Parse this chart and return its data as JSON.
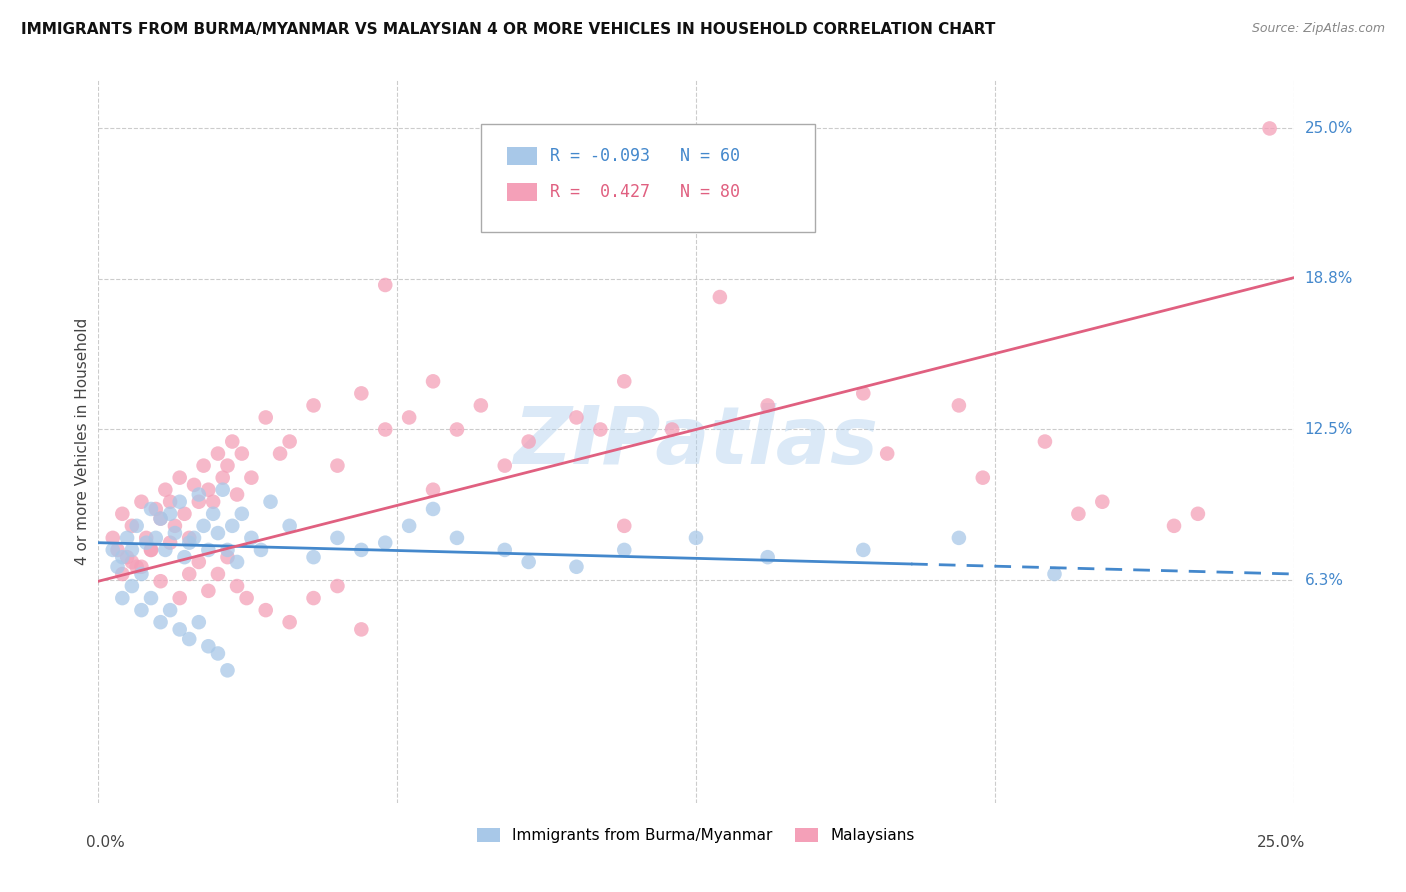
{
  "title": "IMMIGRANTS FROM BURMA/MYANMAR VS MALAYSIAN 4 OR MORE VEHICLES IN HOUSEHOLD CORRELATION CHART",
  "source": "Source: ZipAtlas.com",
  "ylabel": "4 or more Vehicles in Household",
  "xmin": 0.0,
  "xmax": 25.0,
  "ymin": -3.0,
  "ymax": 27.0,
  "blue_R": -0.093,
  "blue_N": 60,
  "pink_R": 0.427,
  "pink_N": 80,
  "blue_color": "#a8c8e8",
  "pink_color": "#f4a0b8",
  "blue_line_color": "#4488cc",
  "pink_line_color": "#e06080",
  "watermark": "ZIPatlas",
  "legend_label_blue": "Immigrants from Burma/Myanmar",
  "legend_label_pink": "Malaysians",
  "ytick_positions": [
    6.25,
    12.5,
    18.75,
    25.0
  ],
  "ytick_labels": [
    "6.3%",
    "12.5%",
    "18.8%",
    "25.0%"
  ],
  "blue_trend_x0": 0.0,
  "blue_trend_y0": 7.8,
  "blue_trend_x1": 25.0,
  "blue_trend_y1": 6.5,
  "blue_solid_end": 17.0,
  "pink_trend_x0": 0.0,
  "pink_trend_y0": 6.2,
  "pink_trend_x1": 25.0,
  "pink_trend_y1": 18.8,
  "blue_scatter_x": [
    0.3,
    0.4,
    0.5,
    0.6,
    0.7,
    0.8,
    0.9,
    1.0,
    1.1,
    1.2,
    1.3,
    1.4,
    1.5,
    1.6,
    1.7,
    1.8,
    1.9,
    2.0,
    2.1,
    2.2,
    2.3,
    2.4,
    2.5,
    2.6,
    2.7,
    2.8,
    2.9,
    3.0,
    3.2,
    3.4,
    3.6,
    4.0,
    4.5,
    5.0,
    5.5,
    6.0,
    6.5,
    7.0,
    7.5,
    8.5,
    9.0,
    10.0,
    11.0,
    12.5,
    14.0,
    16.0,
    18.0,
    20.0,
    0.5,
    0.7,
    0.9,
    1.1,
    1.3,
    1.5,
    1.7,
    1.9,
    2.1,
    2.3,
    2.5,
    2.7
  ],
  "blue_scatter_y": [
    7.5,
    6.8,
    7.2,
    8.0,
    7.5,
    8.5,
    6.5,
    7.8,
    9.2,
    8.0,
    8.8,
    7.5,
    9.0,
    8.2,
    9.5,
    7.2,
    7.8,
    8.0,
    9.8,
    8.5,
    7.5,
    9.0,
    8.2,
    10.0,
    7.5,
    8.5,
    7.0,
    9.0,
    8.0,
    7.5,
    9.5,
    8.5,
    7.2,
    8.0,
    7.5,
    7.8,
    8.5,
    9.2,
    8.0,
    7.5,
    7.0,
    6.8,
    7.5,
    8.0,
    7.2,
    7.5,
    8.0,
    6.5,
    5.5,
    6.0,
    5.0,
    5.5,
    4.5,
    5.0,
    4.2,
    3.8,
    4.5,
    3.5,
    3.2,
    2.5
  ],
  "pink_scatter_x": [
    0.3,
    0.4,
    0.5,
    0.6,
    0.7,
    0.8,
    0.9,
    1.0,
    1.1,
    1.2,
    1.3,
    1.4,
    1.5,
    1.6,
    1.7,
    1.8,
    1.9,
    2.0,
    2.1,
    2.2,
    2.3,
    2.4,
    2.5,
    2.6,
    2.7,
    2.8,
    2.9,
    3.0,
    3.2,
    3.5,
    3.8,
    4.0,
    4.5,
    5.0,
    5.5,
    6.0,
    6.5,
    7.0,
    7.5,
    8.0,
    9.0,
    10.0,
    11.0,
    12.0,
    14.0,
    16.0,
    18.0,
    20.5,
    22.5,
    24.5,
    0.5,
    0.7,
    0.9,
    1.1,
    1.3,
    1.5,
    1.7,
    1.9,
    2.1,
    2.3,
    2.5,
    2.7,
    2.9,
    3.1,
    3.5,
    4.0,
    4.5,
    5.0,
    5.5,
    6.0,
    7.0,
    8.5,
    10.5,
    13.0,
    16.5,
    18.5,
    19.8,
    21.0,
    23.0,
    11.0
  ],
  "pink_scatter_y": [
    8.0,
    7.5,
    9.0,
    7.2,
    8.5,
    6.8,
    9.5,
    8.0,
    7.5,
    9.2,
    8.8,
    10.0,
    9.5,
    8.5,
    10.5,
    9.0,
    8.0,
    10.2,
    9.5,
    11.0,
    10.0,
    9.5,
    11.5,
    10.5,
    11.0,
    12.0,
    9.8,
    11.5,
    10.5,
    13.0,
    11.5,
    12.0,
    13.5,
    11.0,
    14.0,
    12.5,
    13.0,
    14.5,
    12.5,
    13.5,
    12.0,
    13.0,
    14.5,
    12.5,
    13.5,
    14.0,
    13.5,
    9.0,
    8.5,
    25.0,
    6.5,
    7.0,
    6.8,
    7.5,
    6.2,
    7.8,
    5.5,
    6.5,
    7.0,
    5.8,
    6.5,
    7.2,
    6.0,
    5.5,
    5.0,
    4.5,
    5.5,
    6.0,
    4.2,
    18.5,
    10.0,
    11.0,
    12.5,
    18.0,
    11.5,
    10.5,
    12.0,
    9.5,
    9.0,
    8.5
  ]
}
